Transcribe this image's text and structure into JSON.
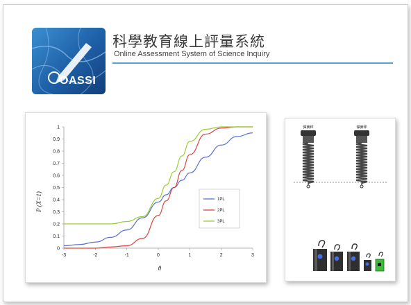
{
  "header": {
    "title_zh": "科學教育線上評量系統",
    "title_en": "Online Assessment System of Science Inquiry",
    "logo_text": "OASSI"
  },
  "springs": {
    "top_labels": [
      "彈簧秤",
      "彈簧秤"
    ]
  },
  "chart_data": {
    "type": "line",
    "xlabel": "θ",
    "ylabel": "P (X=1)",
    "xlim": [
      -3,
      3
    ],
    "ylim": [
      0,
      1
    ],
    "xticks": [
      -3,
      -2,
      -1,
      0,
      1,
      2,
      3
    ],
    "yticks": [
      0,
      0.1,
      0.2,
      0.3,
      0.4,
      0.5,
      0.6,
      0.7,
      0.8,
      0.9,
      1
    ],
    "grid": false,
    "legend_position": "center-right",
    "x": [
      -3,
      -2.5,
      -2,
      -1.5,
      -1,
      -0.5,
      0,
      0.25,
      0.5,
      0.75,
      1,
      1.5,
      2,
      2.5,
      3
    ],
    "series": [
      {
        "name": "1PL",
        "color": "#5b6fd6",
        "values": [
          0.02,
          0.03,
          0.05,
          0.09,
          0.15,
          0.25,
          0.38,
          0.44,
          0.5,
          0.56,
          0.62,
          0.75,
          0.85,
          0.92,
          0.95
        ]
      },
      {
        "name": "2PL",
        "color": "#d9443e",
        "values": [
          0.0,
          0.0,
          0.0,
          0.01,
          0.02,
          0.08,
          0.27,
          0.39,
          0.5,
          0.64,
          0.77,
          0.94,
          0.99,
          1.0,
          1.0
        ]
      },
      {
        "name": "3PL",
        "color": "#9acd32",
        "values": [
          0.2,
          0.2,
          0.2,
          0.2,
          0.22,
          0.26,
          0.41,
          0.52,
          0.63,
          0.76,
          0.88,
          0.98,
          1.0,
          1.0,
          1.0
        ]
      }
    ]
  }
}
